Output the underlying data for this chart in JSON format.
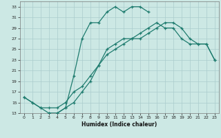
{
  "xlabel": "Humidex (Indice chaleur)",
  "background_color": "#cce8e4",
  "grid_color": "#aacccc",
  "line_color": "#1e7b6e",
  "xlim": [
    -0.5,
    23.5
  ],
  "ylim": [
    13,
    34
  ],
  "xticks": [
    0,
    1,
    2,
    3,
    4,
    5,
    6,
    7,
    8,
    9,
    10,
    11,
    12,
    13,
    14,
    15,
    16,
    17,
    18,
    19,
    20,
    21,
    22,
    23
  ],
  "yticks": [
    13,
    15,
    17,
    19,
    21,
    23,
    25,
    27,
    29,
    31,
    33
  ],
  "line1_x": [
    0,
    1,
    2,
    3,
    4,
    5,
    6,
    7,
    8,
    9,
    10,
    11,
    12,
    13,
    14,
    15
  ],
  "line1_y": [
    16,
    15,
    14,
    13,
    13,
    14,
    20,
    27,
    30,
    30,
    32,
    33,
    32,
    33,
    33,
    32
  ],
  "line2_x": [
    0,
    1,
    2,
    3,
    4,
    5,
    6,
    7,
    8,
    9,
    10,
    11,
    12,
    13,
    14,
    15,
    16,
    17,
    18,
    19,
    20,
    21,
    22,
    23
  ],
  "line2_y": [
    16,
    15,
    14,
    14,
    14,
    15,
    17,
    18,
    20,
    22,
    24,
    25,
    26,
    27,
    27,
    28,
    29,
    30,
    30,
    29,
    27,
    26,
    26,
    23
  ],
  "line3_x": [
    3,
    4,
    5,
    6,
    7,
    8,
    9,
    10,
    11,
    12,
    13,
    14,
    15,
    16,
    17,
    18,
    19,
    20,
    21,
    22,
    23
  ],
  "line3_y": [
    13,
    13,
    14,
    15,
    17,
    19,
    22,
    25,
    26,
    27,
    27,
    28,
    29,
    30,
    29,
    29,
    27,
    26,
    26,
    26,
    23
  ]
}
